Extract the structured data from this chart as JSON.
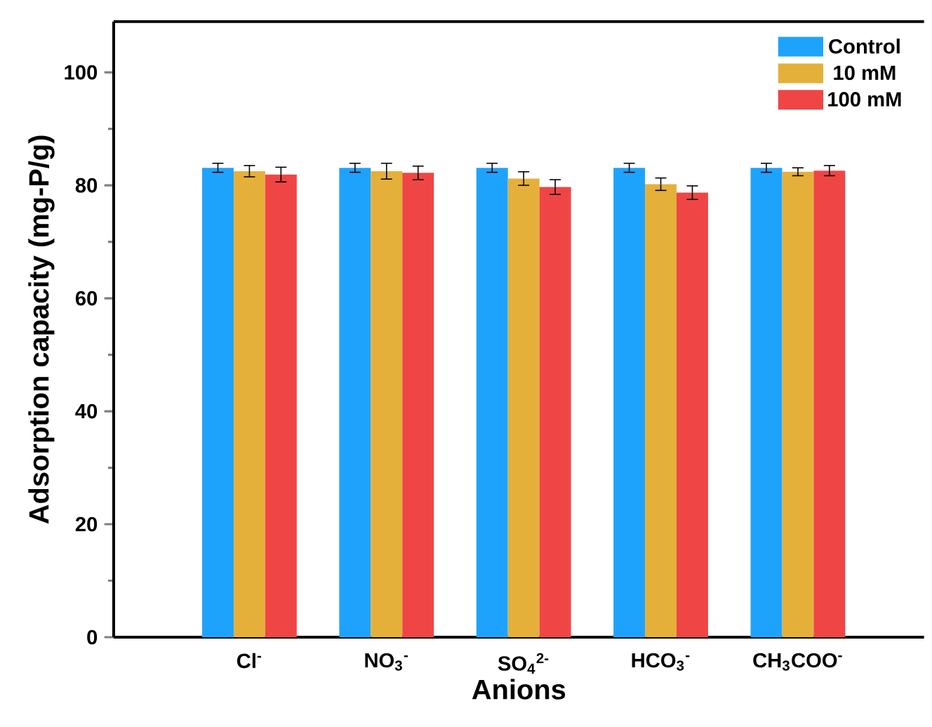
{
  "chart_data": {
    "type": "bar",
    "xlabel": "Anions",
    "ylabel": "Adsorption capacity (mg-P/g)",
    "categories": [
      "Cl$^{-}$",
      "NO$_{3}$$^{-}$",
      "SO$_{4}$$^{2-}$",
      "HCO$_{3}$$^{-}$",
      "CH$_{3}$COO$^{-}$"
    ],
    "series": [
      {
        "name": "Control",
        "color": "#1ea3fd",
        "values": [
          83.1,
          83.1,
          83.1,
          83.1,
          83.1
        ],
        "errors": [
          0.8,
          0.8,
          0.8,
          0.8,
          0.8
        ]
      },
      {
        "name": "10 mM",
        "color": "#e4b03a",
        "values": [
          82.5,
          82.5,
          81.2,
          80.2,
          82.4
        ],
        "errors": [
          1.0,
          1.4,
          1.2,
          1.1,
          0.7
        ]
      },
      {
        "name": "100 mM",
        "color": "#f04545",
        "values": [
          81.9,
          82.2,
          79.7,
          78.7,
          82.6
        ],
        "errors": [
          1.3,
          1.2,
          1.3,
          1.2,
          0.9
        ]
      }
    ],
    "ylim": [
      0,
      109
    ],
    "yticks": [
      0,
      20,
      40,
      60,
      80,
      100
    ],
    "legend": "top right"
  }
}
